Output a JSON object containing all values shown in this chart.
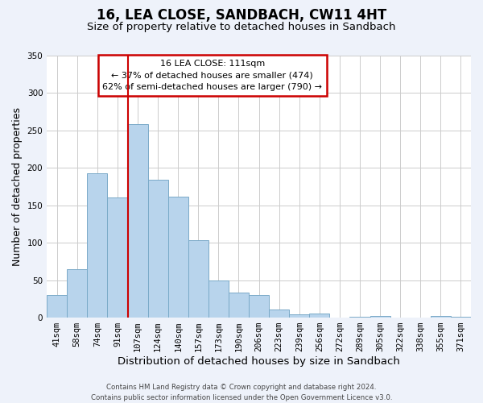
{
  "title": "16, LEA CLOSE, SANDBACH, CW11 4HT",
  "subtitle": "Size of property relative to detached houses in Sandbach",
  "xlabel": "Distribution of detached houses by size in Sandbach",
  "ylabel": "Number of detached properties",
  "bin_labels": [
    "41sqm",
    "58sqm",
    "74sqm",
    "91sqm",
    "107sqm",
    "124sqm",
    "140sqm",
    "157sqm",
    "173sqm",
    "190sqm",
    "206sqm",
    "223sqm",
    "239sqm",
    "256sqm",
    "272sqm",
    "289sqm",
    "305sqm",
    "322sqm",
    "338sqm",
    "355sqm",
    "371sqm"
  ],
  "bar_heights": [
    30,
    65,
    193,
    160,
    258,
    184,
    162,
    103,
    50,
    33,
    30,
    11,
    4,
    5,
    0,
    1,
    2,
    0,
    0,
    2,
    1
  ],
  "bar_color": "#b8d4ec",
  "bar_edge_color": "#7aaac8",
  "vline_x_index": 4,
  "vline_color": "#cc0000",
  "ylim": [
    0,
    350
  ],
  "yticks": [
    0,
    50,
    100,
    150,
    200,
    250,
    300,
    350
  ],
  "annotation_title": "16 LEA CLOSE: 111sqm",
  "annotation_line1": "← 37% of detached houses are smaller (474)",
  "annotation_line2": "62% of semi-detached houses are larger (790) →",
  "footer_line1": "Contains HM Land Registry data © Crown copyright and database right 2024.",
  "footer_line2": "Contains public sector information licensed under the Open Government Licence v3.0.",
  "background_color": "#eef2fa",
  "plot_background": "#ffffff"
}
